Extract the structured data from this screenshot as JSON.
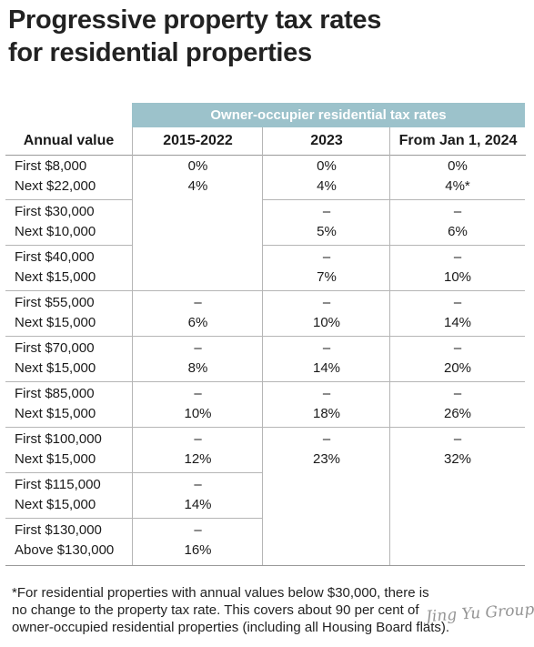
{
  "title": {
    "line1": "Progressive property tax rates",
    "line2": "for residential properties"
  },
  "table": {
    "group_header": "Owner-occupier residential tax rates",
    "columns": [
      "Annual value",
      "2015-2022",
      "2023",
      "From Jan 1, 2024"
    ],
    "rows": [
      {
        "label1": "First $8,000",
        "label2": "Next $22,000",
        "c1": [
          "0%",
          "4%"
        ],
        "c2": [
          "0%",
          "4%"
        ],
        "c3": [
          "0%",
          "4%*"
        ]
      },
      {
        "label1": "First $30,000",
        "label2": "Next $10,000",
        "c1": [
          "",
          ""
        ],
        "c2": [
          "–",
          "5%"
        ],
        "c3": [
          "–",
          "6%"
        ]
      },
      {
        "label1": "First $40,000",
        "label2": "Next $15,000",
        "c1": [
          "",
          ""
        ],
        "c2": [
          "–",
          "7%"
        ],
        "c3": [
          "–",
          "10%"
        ]
      },
      {
        "label1": "First $55,000",
        "label2": "Next $15,000",
        "c1": [
          "–",
          "6%"
        ],
        "c2": [
          "–",
          "10%"
        ],
        "c3": [
          "–",
          "14%"
        ]
      },
      {
        "label1": "First $70,000",
        "label2": "Next $15,000",
        "c1": [
          "–",
          "8%"
        ],
        "c2": [
          "–",
          "14%"
        ],
        "c3": [
          "–",
          "20%"
        ]
      },
      {
        "label1": "First $85,000",
        "label2": "Next $15,000",
        "c1": [
          "–",
          "10%"
        ],
        "c2": [
          "–",
          "18%"
        ],
        "c3": [
          "–",
          "26%"
        ]
      },
      {
        "label1": "First $100,000",
        "label2": "Next $15,000",
        "c1": [
          "–",
          "12%"
        ],
        "c2": [
          "–",
          "23%"
        ],
        "c3": [
          "–",
          "32%"
        ]
      },
      {
        "label1": "First $115,000",
        "label2": "Next $15,000",
        "c1": [
          "–",
          "14%"
        ],
        "c2": [
          "",
          ""
        ],
        "c3": [
          "",
          ""
        ]
      },
      {
        "label1": "First $130,000",
        "label2": "Above $130,000",
        "c1": [
          "–",
          "16%"
        ],
        "c2": [
          "",
          ""
        ],
        "c3": [
          "",
          ""
        ]
      }
    ]
  },
  "footnote": {
    "line1": "*For residential properties with annual values below $30,000, there is",
    "line2": "no change to the property tax rate. This covers about 90 per cent of",
    "line3": "owner-occupied residential properties (including all Housing Board flats)."
  },
  "watermark": "Jing Yu Group"
}
